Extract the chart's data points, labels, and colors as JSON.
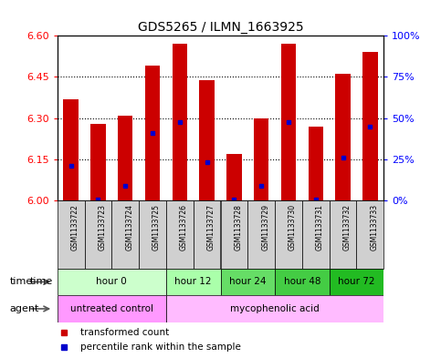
{
  "title": "GDS5265 / ILMN_1663925",
  "samples": [
    "GSM1133722",
    "GSM1133723",
    "GSM1133724",
    "GSM1133725",
    "GSM1133726",
    "GSM1133727",
    "GSM1133728",
    "GSM1133729",
    "GSM1133730",
    "GSM1133731",
    "GSM1133732",
    "GSM1133733"
  ],
  "bar_tops": [
    6.37,
    6.28,
    6.31,
    6.49,
    6.57,
    6.44,
    6.17,
    6.3,
    6.57,
    6.27,
    6.46,
    6.54
  ],
  "bar_base": 6.0,
  "blue_dot_values": [
    6.125,
    6.005,
    6.055,
    6.245,
    6.285,
    6.14,
    6.005,
    6.055,
    6.285,
    6.005,
    6.155,
    6.27
  ],
  "ylim": [
    6.0,
    6.6
  ],
  "yticks_left": [
    6.0,
    6.15,
    6.3,
    6.45,
    6.6
  ],
  "yticks_right": [
    0,
    25,
    50,
    75,
    100
  ],
  "ytick_right_labels": [
    "0%",
    "25%",
    "50%",
    "75%",
    "100%"
  ],
  "bar_color": "#cc0000",
  "dot_color": "#0000cc",
  "time_groups": [
    {
      "label": "hour 0",
      "start": 0,
      "end": 4,
      "color": "#ccffcc"
    },
    {
      "label": "hour 12",
      "start": 4,
      "end": 6,
      "color": "#aaffaa"
    },
    {
      "label": "hour 24",
      "start": 6,
      "end": 8,
      "color": "#66dd66"
    },
    {
      "label": "hour 48",
      "start": 8,
      "end": 10,
      "color": "#44cc44"
    },
    {
      "label": "hour 72",
      "start": 10,
      "end": 12,
      "color": "#22bb22"
    }
  ],
  "agent_groups": [
    {
      "label": "untreated control",
      "start": 0,
      "end": 4,
      "color": "#ff99ff"
    },
    {
      "label": "mycophenolic acid",
      "start": 4,
      "end": 12,
      "color": "#ffbbff"
    }
  ],
  "legend_items": [
    {
      "color": "#cc0000",
      "label": "transformed count"
    },
    {
      "color": "#0000cc",
      "label": "percentile rank within the sample"
    }
  ],
  "sample_label_bg": "#d0d0d0",
  "fig_width": 4.83,
  "fig_height": 3.93,
  "dpi": 100
}
